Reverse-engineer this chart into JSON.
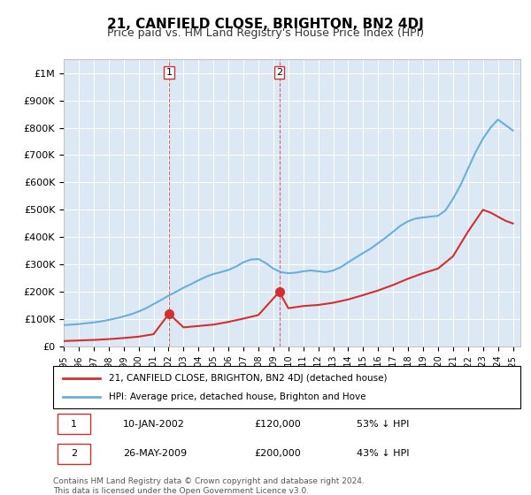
{
  "title": "21, CANFIELD CLOSE, BRIGHTON, BN2 4DJ",
  "subtitle": "Price paid vs. HM Land Registry's House Price Index (HPI)",
  "background_color": "#ffffff",
  "plot_bg_color": "#dce9f5",
  "ylabel": "",
  "ylim": [
    0,
    1050000
  ],
  "yticks": [
    0,
    100000,
    200000,
    300000,
    400000,
    500000,
    600000,
    700000,
    800000,
    900000,
    1000000
  ],
  "ytick_labels": [
    "£0",
    "£100K",
    "£200K",
    "£300K",
    "£400K",
    "£500K",
    "£600K",
    "£700K",
    "£800K",
    "£900K",
    "£1M"
  ],
  "hpi_color": "#6baed6",
  "price_color": "#d32f2f",
  "marker_color": "#d32f2f",
  "vline_color": "#d32f2f",
  "sale1_date_num": 2002.03,
  "sale1_price": 120000,
  "sale2_date_num": 2009.4,
  "sale2_price": 200000,
  "sale1_label": "1",
  "sale2_label": "2",
  "legend_line1": "21, CANFIELD CLOSE, BRIGHTON, BN2 4DJ (detached house)",
  "legend_line2": "HPI: Average price, detached house, Brighton and Hove",
  "table_row1": "1     10-JAN-2002          £120,000          53% ↓ HPI",
  "table_row2": "2     26-MAY-2009          £200,000          43% ↓ HPI",
  "footnote": "Contains HM Land Registry data © Crown copyright and database right 2024.\nThis data is licensed under the Open Government Licence v3.0.",
  "hpi_x": [
    1995,
    1995.5,
    1996,
    1996.5,
    1997,
    1997.5,
    1998,
    1998.5,
    1999,
    1999.5,
    2000,
    2000.5,
    2001,
    2001.5,
    2002,
    2002.5,
    2003,
    2003.5,
    2004,
    2004.5,
    2005,
    2005.5,
    2006,
    2006.5,
    2007,
    2007.5,
    2008,
    2008.5,
    2009,
    2009.5,
    2010,
    2010.5,
    2011,
    2011.5,
    2012,
    2012.5,
    2013,
    2013.5,
    2014,
    2014.5,
    2015,
    2015.5,
    2016,
    2016.5,
    2017,
    2017.5,
    2018,
    2018.5,
    2019,
    2019.5,
    2020,
    2020.5,
    2021,
    2021.5,
    2022,
    2022.5,
    2023,
    2023.5,
    2024,
    2024.5,
    2025
  ],
  "hpi_y": [
    78000,
    80000,
    82000,
    85000,
    88000,
    92000,
    97000,
    103000,
    110000,
    118000,
    128000,
    140000,
    155000,
    170000,
    186000,
    200000,
    215000,
    228000,
    242000,
    255000,
    265000,
    272000,
    280000,
    292000,
    308000,
    318000,
    320000,
    305000,
    285000,
    272000,
    268000,
    270000,
    275000,
    278000,
    275000,
    272000,
    278000,
    290000,
    308000,
    325000,
    342000,
    358000,
    378000,
    398000,
    420000,
    442000,
    458000,
    468000,
    472000,
    475000,
    478000,
    498000,
    540000,
    590000,
    650000,
    710000,
    760000,
    800000,
    830000,
    810000,
    790000
  ],
  "price_x": [
    1995,
    1996,
    1997,
    1998,
    1999,
    2000,
    2001,
    2002.03,
    2003,
    2004,
    2005,
    2006,
    2007,
    2008,
    2009.4,
    2010,
    2011,
    2012,
    2013,
    2014,
    2015,
    2016,
    2017,
    2018,
    2019,
    2020,
    2021,
    2022,
    2022.5,
    2023,
    2023.5,
    2024,
    2024.5,
    2025
  ],
  "price_y": [
    20000,
    22000,
    24000,
    27000,
    31000,
    36000,
    45000,
    120000,
    70000,
    75000,
    80000,
    90000,
    102000,
    115000,
    200000,
    140000,
    148000,
    152000,
    160000,
    172000,
    188000,
    205000,
    225000,
    248000,
    268000,
    285000,
    330000,
    420000,
    460000,
    500000,
    490000,
    475000,
    460000,
    450000
  ]
}
